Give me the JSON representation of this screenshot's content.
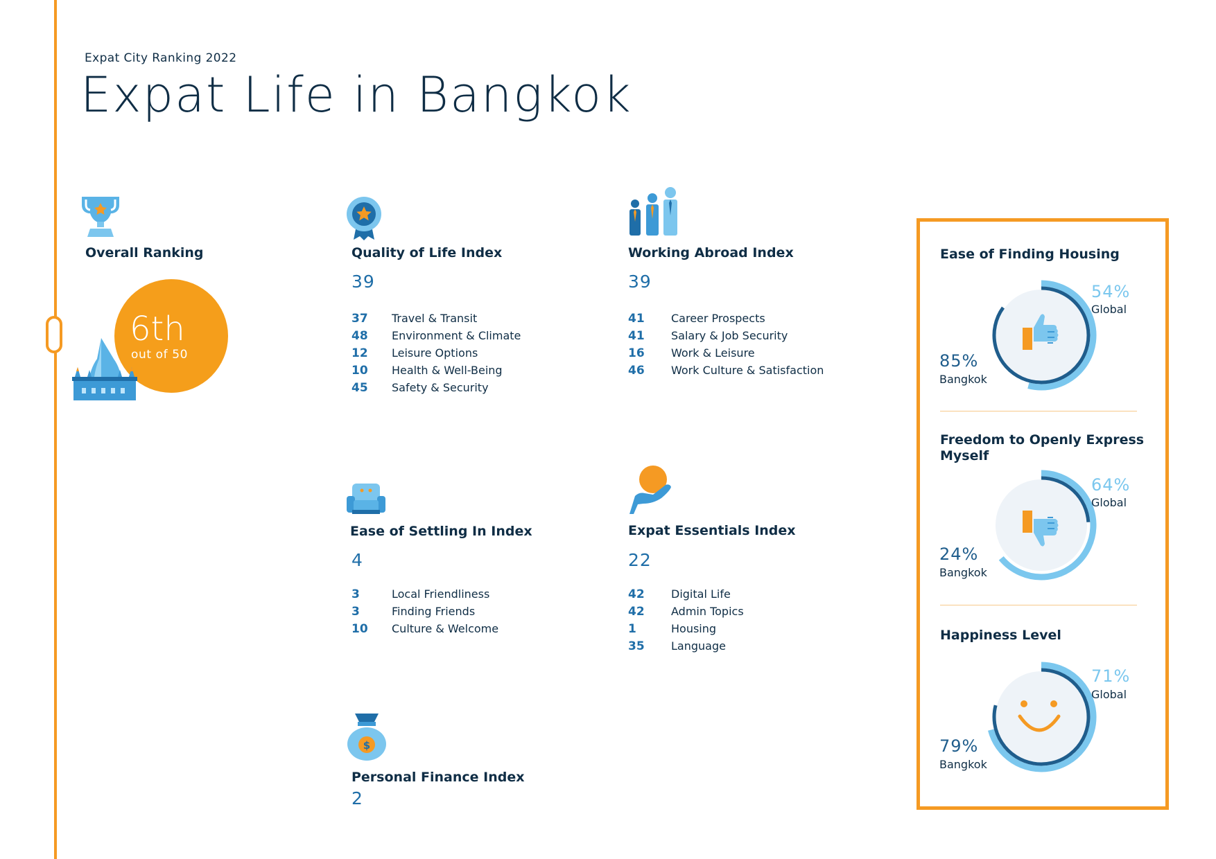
{
  "header": {
    "subtitle": "Expat City Ranking 2022",
    "title": "Expat Life in Bangkok"
  },
  "overall": {
    "label": "Overall Ranking",
    "rank": "6th",
    "out_of": "out of 50"
  },
  "quality_of_life": {
    "title": "Quality of Life Index",
    "score": "39",
    "items": [
      {
        "rank": "37",
        "label": "Travel & Transit"
      },
      {
        "rank": "48",
        "label": "Environment & Climate"
      },
      {
        "rank": "12",
        "label": "Leisure Options"
      },
      {
        "rank": "10",
        "label": "Health & Well-Being"
      },
      {
        "rank": "45",
        "label": "Safety & Security"
      }
    ]
  },
  "working_abroad": {
    "title": "Working Abroad Index",
    "score": "39",
    "items": [
      {
        "rank": "41",
        "label": "Career Prospects"
      },
      {
        "rank": "41",
        "label": "Salary & Job Security"
      },
      {
        "rank": "16",
        "label": "Work & Leisure"
      },
      {
        "rank": "46",
        "label": "Work Culture & Satisfaction"
      }
    ]
  },
  "settling_in": {
    "title": "Ease of Settling In Index",
    "score": "4",
    "items": [
      {
        "rank": "3",
        "label": "Local Friendliness"
      },
      {
        "rank": "3",
        "label": "Finding Friends"
      },
      {
        "rank": "10",
        "label": "Culture & Welcome"
      }
    ]
  },
  "expat_essentials": {
    "title": "Expat Essentials Index",
    "score": "22",
    "items": [
      {
        "rank": "42",
        "label": "Digital Life"
      },
      {
        "rank": "42",
        "label": "Admin Topics"
      },
      {
        "rank": "1",
        "label": "Housing"
      },
      {
        "rank": "35",
        "label": "Language"
      }
    ]
  },
  "personal_finance": {
    "title": "Personal Finance Index",
    "score": "2"
  },
  "panel": {
    "housing": {
      "title": "Ease of Finding Housing",
      "global_pct": "54%",
      "global_label": "Global",
      "global_value": 54,
      "local_pct": "85%",
      "local_label": "Bangkok",
      "local_value": 85,
      "icon": "thumbs-up-icon"
    },
    "freedom": {
      "title_line1": "Freedom to Openly Express",
      "title_line2": "Myself",
      "global_pct": "64%",
      "global_label": "Global",
      "global_value": 64,
      "local_pct": "24%",
      "local_label": "Bangkok",
      "local_value": 24,
      "icon": "thumbs-down-icon"
    },
    "happiness": {
      "title": "Happiness Level",
      "global_pct": "71%",
      "global_label": "Global",
      "global_value": 71,
      "local_pct": "79%",
      "local_label": "Bangkok",
      "local_value": 79,
      "icon": "smiley-icon"
    }
  },
  "colors": {
    "accent": "#f59a23",
    "navy": "#0f2d45",
    "blue": "#1f6ea8",
    "light_blue": "#7bc7ee",
    "dark_ring": "#1f5d8c"
  }
}
